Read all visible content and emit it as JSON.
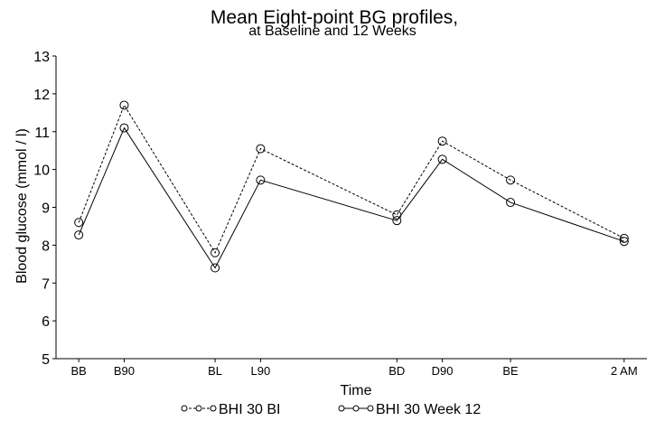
{
  "chart_data": {
    "type": "line",
    "title": "Mean Eight-point BG profiles,",
    "subtitle": "at Baseline and 12 Weeks",
    "xlabel": "Time",
    "ylabel": "Blood glucose (mmol / l)",
    "ylim": [
      5,
      13
    ],
    "yticks": [
      5,
      6,
      7,
      8,
      9,
      10,
      11,
      12,
      13
    ],
    "grid": false,
    "legend_position": "bottom",
    "categories": [
      "BB",
      "B90",
      "BL",
      "L90",
      "BD",
      "D90",
      "BE",
      "2 AM"
    ],
    "x": [
      0.5,
      1.5,
      3.5,
      4.5,
      7.5,
      8.5,
      10,
      12.5
    ],
    "xlim": [
      0,
      13
    ],
    "series": [
      {
        "name": "BHI 30 BI",
        "line_style": "dashed",
        "marker": "open-circle",
        "color": "#000000",
        "values": [
          8.6,
          11.7,
          7.8,
          10.55,
          8.8,
          10.75,
          9.72,
          8.18
        ]
      },
      {
        "name": "BHI 30 Week 12",
        "line_style": "solid",
        "marker": "open-circle",
        "color": "#000000",
        "values": [
          8.27,
          11.1,
          7.4,
          9.72,
          8.65,
          10.27,
          9.13,
          8.1
        ]
      }
    ]
  }
}
